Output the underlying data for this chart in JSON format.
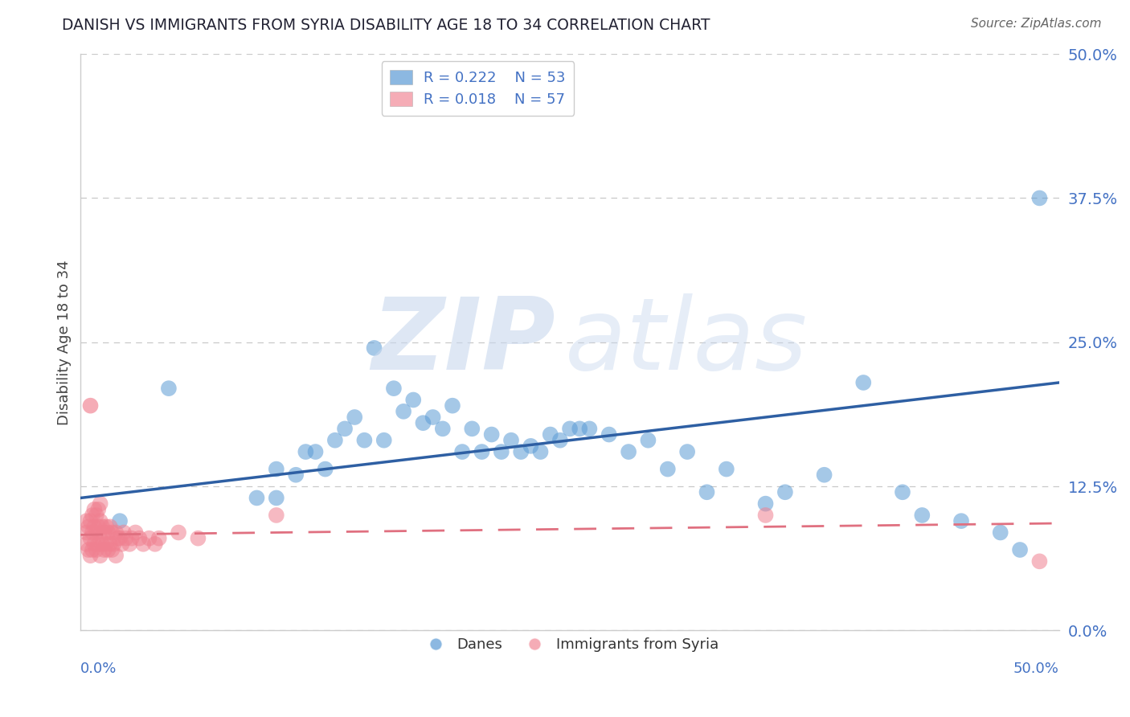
{
  "title": "DANISH VS IMMIGRANTS FROM SYRIA DISABILITY AGE 18 TO 34 CORRELATION CHART",
  "source": "Source: ZipAtlas.com",
  "ylabel": "Disability Age 18 to 34",
  "legend_danes_r": "R = 0.222",
  "legend_danes_n": "N = 53",
  "legend_syria_r": "R = 0.018",
  "legend_syria_n": "N = 57",
  "ytick_labels": [
    "0.0%",
    "12.5%",
    "25.0%",
    "37.5%",
    "50.0%"
  ],
  "ytick_values": [
    0.0,
    0.125,
    0.25,
    0.375,
    0.5
  ],
  "xlim": [
    0.0,
    0.5
  ],
  "ylim": [
    0.0,
    0.5
  ],
  "blue_color": "#5b9bd5",
  "pink_color": "#f08090",
  "blue_line_color": "#2e5fa3",
  "pink_line_color": "#e07080",
  "tick_label_color": "#4472c4",
  "background_color": "#ffffff",
  "grid_color": "#c8c8c8",
  "danes_x": [
    0.02,
    0.045,
    0.09,
    0.1,
    0.1,
    0.11,
    0.115,
    0.12,
    0.125,
    0.13,
    0.135,
    0.14,
    0.145,
    0.15,
    0.155,
    0.16,
    0.165,
    0.17,
    0.175,
    0.18,
    0.185,
    0.19,
    0.195,
    0.2,
    0.205,
    0.21,
    0.215,
    0.22,
    0.225,
    0.23,
    0.235,
    0.24,
    0.245,
    0.25,
    0.255,
    0.26,
    0.27,
    0.28,
    0.29,
    0.3,
    0.31,
    0.32,
    0.33,
    0.35,
    0.36,
    0.38,
    0.4,
    0.42,
    0.43,
    0.45,
    0.47,
    0.48,
    0.49
  ],
  "danes_y": [
    0.095,
    0.21,
    0.115,
    0.115,
    0.14,
    0.135,
    0.155,
    0.155,
    0.14,
    0.165,
    0.175,
    0.185,
    0.165,
    0.245,
    0.165,
    0.21,
    0.19,
    0.2,
    0.18,
    0.185,
    0.175,
    0.195,
    0.155,
    0.175,
    0.155,
    0.17,
    0.155,
    0.165,
    0.155,
    0.16,
    0.155,
    0.17,
    0.165,
    0.175,
    0.175,
    0.175,
    0.17,
    0.155,
    0.165,
    0.14,
    0.155,
    0.12,
    0.14,
    0.11,
    0.12,
    0.135,
    0.215,
    0.12,
    0.1,
    0.095,
    0.085,
    0.07,
    0.375
  ],
  "syria_x": [
    0.003,
    0.003,
    0.003,
    0.004,
    0.004,
    0.005,
    0.005,
    0.005,
    0.006,
    0.006,
    0.006,
    0.007,
    0.007,
    0.007,
    0.008,
    0.008,
    0.008,
    0.009,
    0.009,
    0.009,
    0.01,
    0.01,
    0.01,
    0.01,
    0.011,
    0.011,
    0.012,
    0.012,
    0.013,
    0.013,
    0.014,
    0.014,
    0.015,
    0.015,
    0.016,
    0.016,
    0.017,
    0.018,
    0.018,
    0.019,
    0.02,
    0.021,
    0.022,
    0.023,
    0.025,
    0.026,
    0.028,
    0.03,
    0.032,
    0.035,
    0.038,
    0.04,
    0.05,
    0.06,
    0.1,
    0.35,
    0.49
  ],
  "syria_y": [
    0.075,
    0.085,
    0.095,
    0.07,
    0.09,
    0.065,
    0.08,
    0.095,
    0.07,
    0.085,
    0.1,
    0.075,
    0.09,
    0.105,
    0.07,
    0.085,
    0.1,
    0.075,
    0.09,
    0.105,
    0.065,
    0.08,
    0.095,
    0.11,
    0.075,
    0.09,
    0.07,
    0.085,
    0.075,
    0.09,
    0.07,
    0.085,
    0.075,
    0.09,
    0.07,
    0.085,
    0.075,
    0.065,
    0.085,
    0.08,
    0.08,
    0.075,
    0.085,
    0.08,
    0.075,
    0.08,
    0.085,
    0.08,
    0.075,
    0.08,
    0.075,
    0.08,
    0.085,
    0.08,
    0.1,
    0.1,
    0.06
  ],
  "syria_outlier_x": [
    0.005
  ],
  "syria_outlier_y": [
    0.195
  ],
  "blue_trend_x": [
    0.0,
    0.5
  ],
  "blue_trend_y": [
    0.115,
    0.215
  ],
  "pink_trend_x": [
    0.0,
    0.5
  ],
  "pink_trend_y": [
    0.083,
    0.093
  ],
  "watermark_zip_color": "#c8d8ee",
  "watermark_atlas_color": "#c8d8ee"
}
